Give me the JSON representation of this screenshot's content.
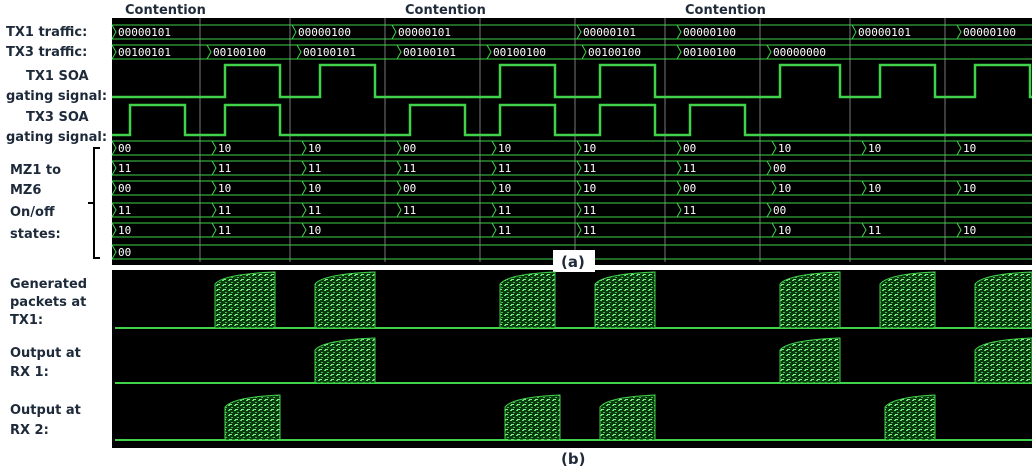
{
  "contention_labels": [
    "Contention",
    "Contention",
    "Contention"
  ],
  "panel_a": {
    "label": "(a)",
    "row_labels": {
      "tx1_traffic": "TX1 traffic:",
      "tx3_traffic": "TX3 traffic:",
      "tx1_soa": [
        "TX1 SOA",
        "gating signal:"
      ],
      "tx3_soa": [
        "TX3 SOA",
        "gating signal:"
      ],
      "mz": [
        "MZ1 to",
        "MZ6",
        "On/off",
        "states:"
      ]
    },
    "tx1_traffic": [
      "00000101",
      "00000100",
      "00000101",
      "00000101",
      "00000100",
      "00000101",
      "00000100"
    ],
    "tx3_traffic": [
      "00100101",
      "00100100",
      "00100101",
      "00100101",
      "00100100",
      "00100100",
      "00100100",
      "00000000"
    ],
    "mz_rows": [
      [
        "00",
        "10",
        "10",
        "00",
        "10",
        "10",
        "00",
        "10",
        "10",
        "10"
      ],
      [
        "11",
        "11",
        "11",
        "11",
        "11",
        "11",
        "11",
        "00"
      ],
      [
        "00",
        "10",
        "10",
        "00",
        "10",
        "10",
        "00",
        "10",
        "10",
        "10"
      ],
      [
        "11",
        "11",
        "11",
        "11",
        "11",
        "11",
        "11",
        "00"
      ],
      [
        "10",
        "11",
        "10",
        "11",
        "11",
        "10",
        "11",
        "10"
      ],
      [
        "00"
      ]
    ]
  },
  "panel_b": {
    "label": "(b)",
    "row_labels": [
      [
        "Generated",
        "packets at",
        "TX1:"
      ],
      [
        "Output at",
        "RX 1:"
      ],
      [
        "Output at",
        "RX 2:"
      ]
    ]
  }
}
